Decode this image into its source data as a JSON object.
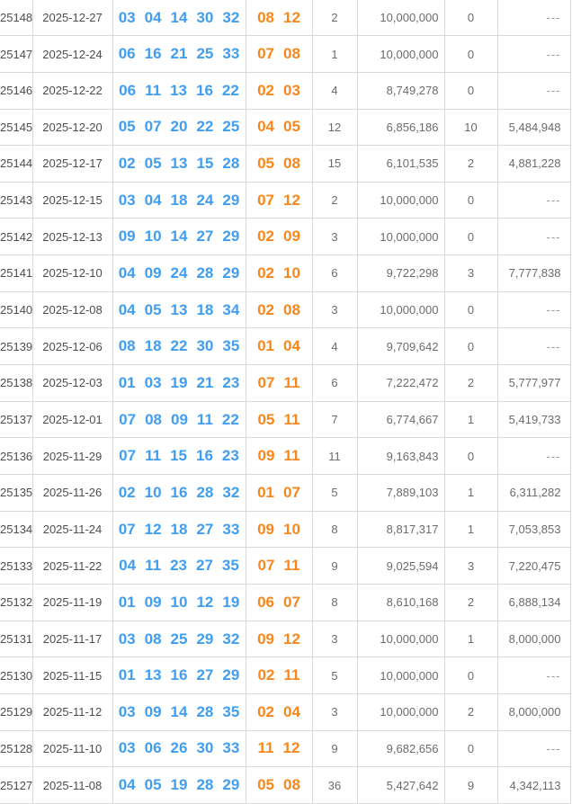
{
  "colors": {
    "front_number": "#3f9ef2",
    "back_number": "#f8871b",
    "row_text": "#4d4d4d",
    "stat_text": "#6b6b6b",
    "dash_text": "#999999",
    "border": "#d9d9d9"
  },
  "empty_value": "---",
  "table": {
    "rows": [
      {
        "issue": "25148",
        "date": "2025-12-27",
        "front": [
          "03",
          "04",
          "14",
          "30",
          "32"
        ],
        "back": [
          "08",
          "12"
        ],
        "count1": "2",
        "amount1": "10,000,000",
        "count2": "0",
        "amount2": "---"
      },
      {
        "issue": "25147",
        "date": "2025-12-24",
        "front": [
          "06",
          "16",
          "21",
          "25",
          "33"
        ],
        "back": [
          "07",
          "08"
        ],
        "count1": "1",
        "amount1": "10,000,000",
        "count2": "0",
        "amount2": "---"
      },
      {
        "issue": "25146",
        "date": "2025-12-22",
        "front": [
          "06",
          "11",
          "13",
          "16",
          "22"
        ],
        "back": [
          "02",
          "03"
        ],
        "count1": "4",
        "amount1": "8,749,278",
        "count2": "0",
        "amount2": "---"
      },
      {
        "issue": "25145",
        "date": "2025-12-20",
        "front": [
          "05",
          "07",
          "20",
          "22",
          "25"
        ],
        "back": [
          "04",
          "05"
        ],
        "count1": "12",
        "amount1": "6,856,186",
        "count2": "10",
        "amount2": "5,484,948"
      },
      {
        "issue": "25144",
        "date": "2025-12-17",
        "front": [
          "02",
          "05",
          "13",
          "15",
          "28"
        ],
        "back": [
          "05",
          "08"
        ],
        "count1": "15",
        "amount1": "6,101,535",
        "count2": "2",
        "amount2": "4,881,228"
      },
      {
        "issue": "25143",
        "date": "2025-12-15",
        "front": [
          "03",
          "04",
          "18",
          "24",
          "29"
        ],
        "back": [
          "07",
          "12"
        ],
        "count1": "2",
        "amount1": "10,000,000",
        "count2": "0",
        "amount2": "---"
      },
      {
        "issue": "25142",
        "date": "2025-12-13",
        "front": [
          "09",
          "10",
          "14",
          "27",
          "29"
        ],
        "back": [
          "02",
          "09"
        ],
        "count1": "3",
        "amount1": "10,000,000",
        "count2": "0",
        "amount2": "---"
      },
      {
        "issue": "25141",
        "date": "2025-12-10",
        "front": [
          "04",
          "09",
          "24",
          "28",
          "29"
        ],
        "back": [
          "02",
          "10"
        ],
        "count1": "6",
        "amount1": "9,722,298",
        "count2": "3",
        "amount2": "7,777,838"
      },
      {
        "issue": "25140",
        "date": "2025-12-08",
        "front": [
          "04",
          "05",
          "13",
          "18",
          "34"
        ],
        "back": [
          "02",
          "08"
        ],
        "count1": "3",
        "amount1": "10,000,000",
        "count2": "0",
        "amount2": "---"
      },
      {
        "issue": "25139",
        "date": "2025-12-06",
        "front": [
          "08",
          "18",
          "22",
          "30",
          "35"
        ],
        "back": [
          "01",
          "04"
        ],
        "count1": "4",
        "amount1": "9,709,642",
        "count2": "0",
        "amount2": "---"
      },
      {
        "issue": "25138",
        "date": "2025-12-03",
        "front": [
          "01",
          "03",
          "19",
          "21",
          "23"
        ],
        "back": [
          "07",
          "11"
        ],
        "count1": "6",
        "amount1": "7,222,472",
        "count2": "2",
        "amount2": "5,777,977"
      },
      {
        "issue": "25137",
        "date": "2025-12-01",
        "front": [
          "07",
          "08",
          "09",
          "11",
          "22"
        ],
        "back": [
          "05",
          "11"
        ],
        "count1": "7",
        "amount1": "6,774,667",
        "count2": "1",
        "amount2": "5,419,733"
      },
      {
        "issue": "25136",
        "date": "2025-11-29",
        "front": [
          "07",
          "11",
          "15",
          "16",
          "23"
        ],
        "back": [
          "09",
          "11"
        ],
        "count1": "11",
        "amount1": "9,163,843",
        "count2": "0",
        "amount2": "---"
      },
      {
        "issue": "25135",
        "date": "2025-11-26",
        "front": [
          "02",
          "10",
          "16",
          "28",
          "32"
        ],
        "back": [
          "01",
          "07"
        ],
        "count1": "5",
        "amount1": "7,889,103",
        "count2": "1",
        "amount2": "6,311,282"
      },
      {
        "issue": "25134",
        "date": "2025-11-24",
        "front": [
          "07",
          "12",
          "18",
          "27",
          "33"
        ],
        "back": [
          "09",
          "10"
        ],
        "count1": "8",
        "amount1": "8,817,317",
        "count2": "1",
        "amount2": "7,053,853"
      },
      {
        "issue": "25133",
        "date": "2025-11-22",
        "front": [
          "04",
          "11",
          "23",
          "27",
          "35"
        ],
        "back": [
          "07",
          "11"
        ],
        "count1": "9",
        "amount1": "9,025,594",
        "count2": "3",
        "amount2": "7,220,475"
      },
      {
        "issue": "25132",
        "date": "2025-11-19",
        "front": [
          "01",
          "09",
          "10",
          "12",
          "19"
        ],
        "back": [
          "06",
          "07"
        ],
        "count1": "8",
        "amount1": "8,610,168",
        "count2": "2",
        "amount2": "6,888,134"
      },
      {
        "issue": "25131",
        "date": "2025-11-17",
        "front": [
          "03",
          "08",
          "25",
          "29",
          "32"
        ],
        "back": [
          "09",
          "12"
        ],
        "count1": "3",
        "amount1": "10,000,000",
        "count2": "1",
        "amount2": "8,000,000"
      },
      {
        "issue": "25130",
        "date": "2025-11-15",
        "front": [
          "01",
          "13",
          "16",
          "27",
          "29"
        ],
        "back": [
          "02",
          "11"
        ],
        "count1": "5",
        "amount1": "10,000,000",
        "count2": "0",
        "amount2": "---"
      },
      {
        "issue": "25129",
        "date": "2025-11-12",
        "front": [
          "03",
          "09",
          "14",
          "28",
          "35"
        ],
        "back": [
          "02",
          "04"
        ],
        "count1": "3",
        "amount1": "10,000,000",
        "count2": "2",
        "amount2": "8,000,000"
      },
      {
        "issue": "25128",
        "date": "2025-11-10",
        "front": [
          "03",
          "06",
          "26",
          "30",
          "33"
        ],
        "back": [
          "11",
          "12"
        ],
        "count1": "9",
        "amount1": "9,682,656",
        "count2": "0",
        "amount2": "---"
      },
      {
        "issue": "25127",
        "date": "2025-11-08",
        "front": [
          "04",
          "05",
          "19",
          "28",
          "29"
        ],
        "back": [
          "05",
          "08"
        ],
        "count1": "36",
        "amount1": "5,427,642",
        "count2": "9",
        "amount2": "4,342,113"
      }
    ]
  }
}
